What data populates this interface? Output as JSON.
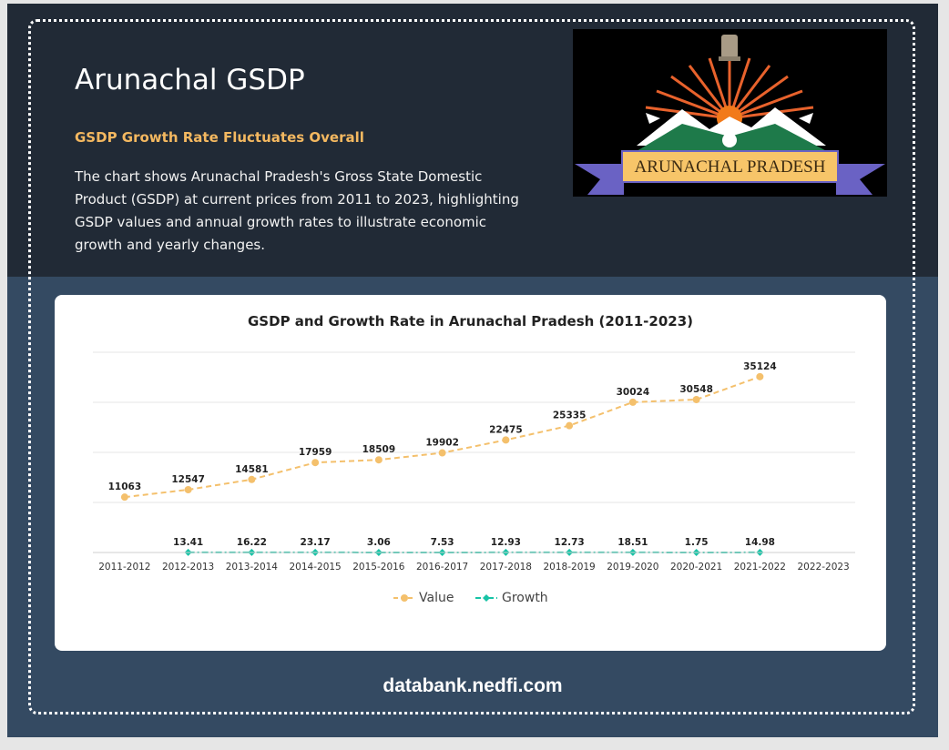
{
  "header": {
    "title": "Arunachal GSDP",
    "subtitle": "GSDP Growth Rate Fluctuates Overall",
    "description": "The chart shows Arunachal Pradesh's Gross State Domestic Product (GSDP) at current prices from 2011 to 2023, highlighting GSDP values and annual growth rates to illustrate economic growth and yearly changes."
  },
  "logo": {
    "text": "ARUNACHAL PRADESH"
  },
  "footer": {
    "text": "databank.nedfi.com"
  },
  "colors": {
    "value_series": "#f4c06c",
    "growth_series": "#17c3a6",
    "top_band": "#212a36",
    "bottom_band": "#344a62",
    "accent_subtitle": "#f4b860"
  },
  "chart_data": {
    "type": "line",
    "title": "GSDP and Growth Rate in Arunachal Pradesh (2011-2023)",
    "categories": [
      "2011-2012",
      "2012-2013",
      "2013-2014",
      "2014-2015",
      "2015-2016",
      "2016-2017",
      "2017-2018",
      "2018-2019",
      "2019-2020",
      "2020-2021",
      "2021-2022",
      "2022-2023"
    ],
    "series": [
      {
        "name": "Value",
        "values": [
          11063,
          12547,
          14581,
          17959,
          18509,
          19902,
          22475,
          25335,
          30024,
          30548,
          35124,
          null
        ],
        "color": "#f4c06c",
        "marker": "circle",
        "line": "dashed"
      },
      {
        "name": "Growth",
        "values": [
          null,
          13.41,
          16.22,
          23.17,
          3.06,
          7.53,
          12.93,
          12.73,
          18.51,
          1.75,
          14.98,
          null
        ],
        "color": "#17c3a6",
        "marker": "diamond",
        "line": "dashdot"
      }
    ],
    "ylim": [
      0,
      40000
    ],
    "grid": true,
    "legend": "bottom-center",
    "data_labels": true
  }
}
